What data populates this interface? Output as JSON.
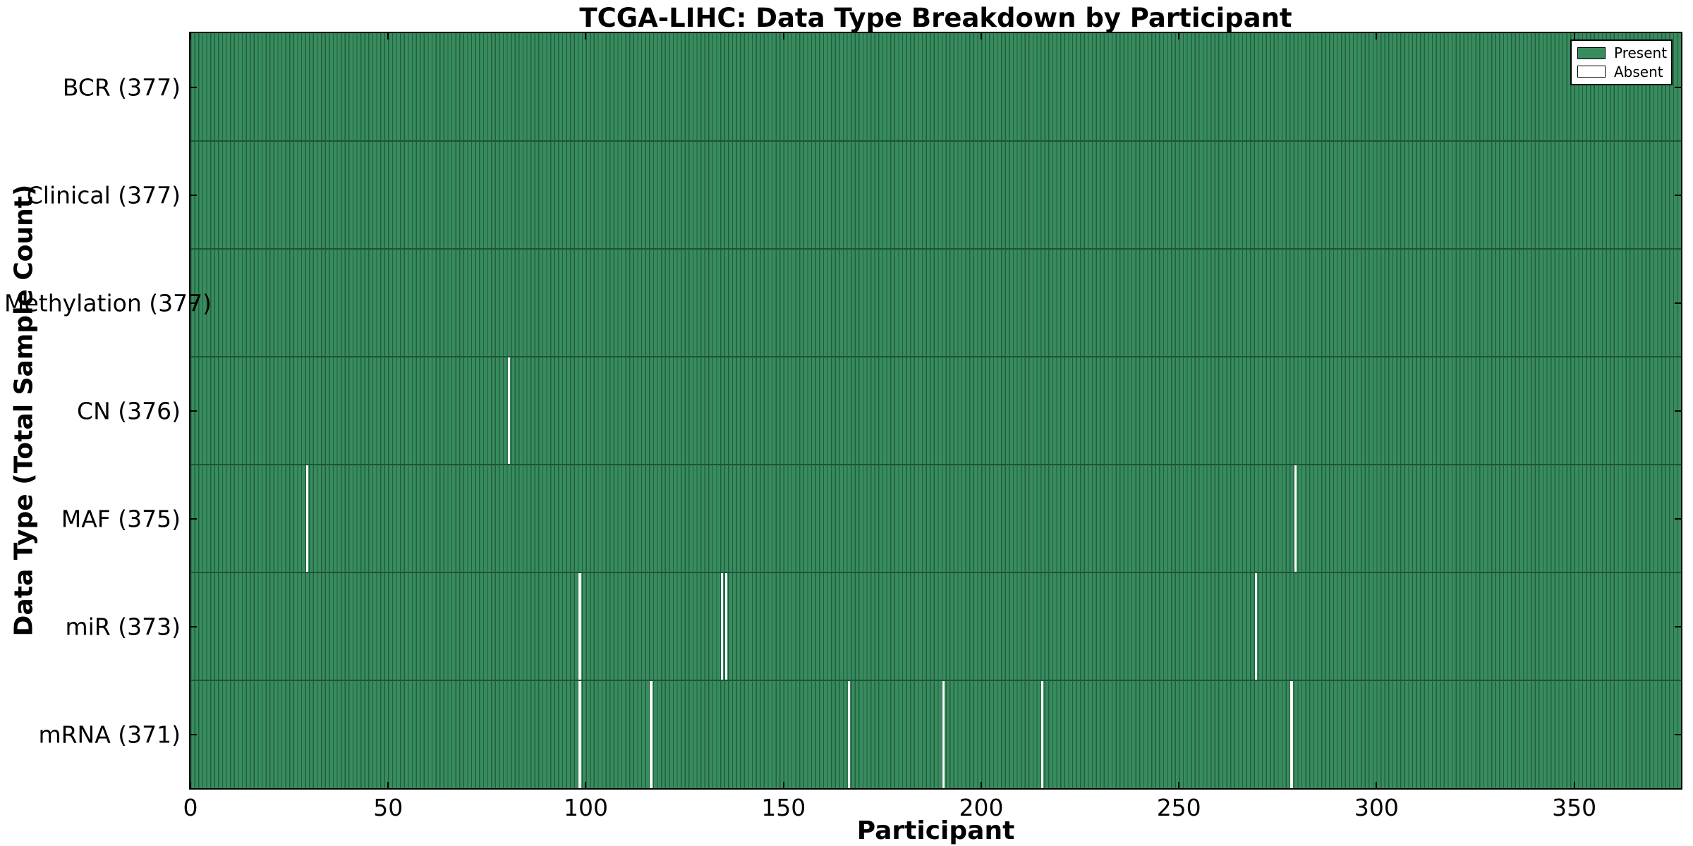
{
  "title": "TCGA-LIHC: Data Type Breakdown by Participant",
  "axes": {
    "xlabel": "Participant",
    "ylabel": "Data Type (Total Sample Count)"
  },
  "legend": {
    "present_label": "Present",
    "absent_label": "Absent"
  },
  "colors": {
    "present_fill": "#388c5e",
    "bar_edge": "#205e3e",
    "row_boundary": "#1d5437",
    "absent_fill": "#ffffff",
    "spine": "#000000"
  },
  "chart_data": {
    "type": "heatmap",
    "title": "TCGA-LIHC: Data Type Breakdown by Participant",
    "xlabel": "Participant",
    "ylabel": "Data Type (Total Sample Count)",
    "xlim": [
      0,
      377
    ],
    "n_participants": 377,
    "x_ticks": [
      0,
      50,
      100,
      150,
      200,
      250,
      300,
      350
    ],
    "x_tick_labels": [
      "0",
      "50",
      "100",
      "150",
      "200",
      "250",
      "300",
      "350"
    ],
    "grid": false,
    "legend_entries": [
      "Present",
      "Absent"
    ],
    "legend_position": "upper right",
    "rows": [
      {
        "name": "BCR",
        "label": "BCR (377)",
        "total_samples": 377,
        "absent_participants": []
      },
      {
        "name": "Clinical",
        "label": "Clinical (377)",
        "total_samples": 377,
        "absent_participants": []
      },
      {
        "name": "Methylation",
        "label": "Methylation (377)",
        "total_samples": 377,
        "absent_participants": []
      },
      {
        "name": "CN",
        "label": "CN (376)",
        "total_samples": 376,
        "absent_participants": [
          80
        ]
      },
      {
        "name": "MAF",
        "label": "MAF (375)",
        "total_samples": 375,
        "absent_participants": [
          29,
          279
        ]
      },
      {
        "name": "miR",
        "label": "miR (373)",
        "total_samples": 373,
        "absent_participants": [
          98,
          134,
          135,
          269
        ]
      },
      {
        "name": "mRNA",
        "label": "mRNA (371)",
        "total_samples": 371,
        "absent_participants": [
          98,
          116,
          166,
          190,
          215,
          278
        ]
      }
    ]
  }
}
